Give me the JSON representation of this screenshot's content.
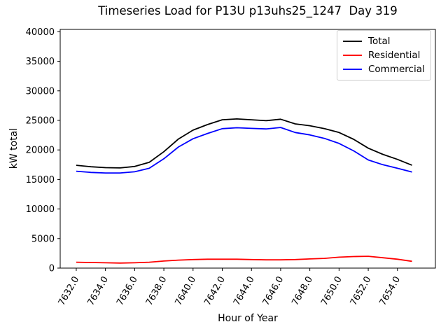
{
  "chart_data": {
    "type": "line",
    "title": "Timeseries Load for P13U p13uhs25_1247  Day 319",
    "xlabel": "Hour of Year",
    "ylabel": "kW total",
    "grid": false,
    "legend_position": "upper right",
    "xlim": [
      7630.9,
      7656.6
    ],
    "ylim": [
      0,
      40400
    ],
    "x_tick_rotation": 60,
    "x_ticks": {
      "values": [
        7632,
        7634,
        7636,
        7638,
        7640,
        7642,
        7644,
        7646,
        7648,
        7650,
        7652,
        7654
      ],
      "labels": [
        "7632.0",
        "7634.0",
        "7636.0",
        "7638.0",
        "7640.0",
        "7642.0",
        "7644.0",
        "7646.0",
        "7648.0",
        "7650.0",
        "7652.0",
        "7654.0"
      ]
    },
    "y_ticks": {
      "values": [
        0,
        5000,
        10000,
        15000,
        20000,
        25000,
        30000,
        35000,
        40000
      ],
      "labels": [
        "0",
        "5000",
        "10000",
        "15000",
        "20000",
        "25000",
        "30000",
        "35000",
        "40000"
      ]
    },
    "x": [
      7632,
      7633,
      7634,
      7635,
      7636,
      7637,
      7638,
      7639,
      7640,
      7641,
      7642,
      7643,
      7644,
      7645,
      7646,
      7647,
      7648,
      7649,
      7650,
      7651,
      7652,
      7653,
      7654,
      7655
    ],
    "series": [
      {
        "name": "Total",
        "color": "#000000",
        "values": [
          17400,
          17150,
          17000,
          16950,
          17200,
          17900,
          19700,
          21850,
          23350,
          24300,
          25100,
          25250,
          25100,
          24950,
          25200,
          24400,
          24100,
          23600,
          22950,
          21800,
          20300,
          19250,
          18400,
          17400
        ]
      },
      {
        "name": "Residential",
        "color": "#ff0000",
        "values": [
          1000,
          950,
          900,
          850,
          900,
          1000,
          1200,
          1350,
          1450,
          1500,
          1500,
          1500,
          1450,
          1400,
          1400,
          1450,
          1550,
          1650,
          1850,
          1950,
          2000,
          1750,
          1500,
          1150
        ]
      },
      {
        "name": "Commercial",
        "color": "#0000ff",
        "values": [
          16400,
          16200,
          16100,
          16100,
          16300,
          16900,
          18500,
          20500,
          21900,
          22800,
          23600,
          23750,
          23650,
          23550,
          23800,
          22950,
          22550,
          21950,
          21100,
          19850,
          18300,
          17500,
          16900,
          16250
        ]
      }
    ]
  }
}
